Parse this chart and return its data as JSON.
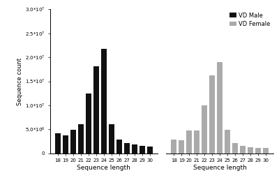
{
  "categories": [
    18,
    19,
    20,
    21,
    22,
    23,
    24,
    25,
    26,
    27,
    28,
    29,
    30
  ],
  "male_values": [
    4200000,
    3700000,
    4900000,
    6000000,
    12500000,
    18200000,
    21800000,
    6000000,
    2800000,
    2100000,
    1800000,
    1500000,
    1400000
  ],
  "female_values": [
    2800000,
    2700000,
    4700000,
    4800000,
    10000000,
    16200000,
    19000000,
    4900000,
    2200000,
    1600000,
    1300000,
    1200000,
    1100000
  ],
  "male_color": "#111111",
  "female_color": "#aaaaaa",
  "ylabel": "Sequence count",
  "xlabel": "Sequence length",
  "ylim": [
    0,
    30000000
  ],
  "yticks": [
    0,
    5000000,
    10000000,
    15000000,
    20000000,
    25000000,
    30000000
  ],
  "ytick_labels": [
    "0",
    "5.0*10$^6$",
    "1.0*10$^7$",
    "1.5*10$^7$",
    "2.0*10$^7$",
    "2.5*10$^7$",
    "3.0*10$^7$"
  ],
  "legend_labels": [
    "VD Male",
    "VD Female"
  ],
  "background_color": "#ffffff"
}
